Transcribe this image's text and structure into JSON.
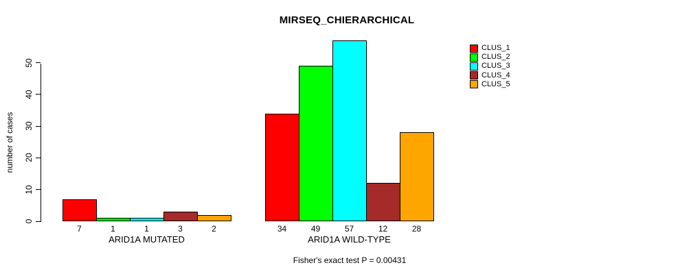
{
  "title": "MIRSEQ_CHIERARCHICAL",
  "ylabel": "number of cases",
  "annotation": "Fisher's exact test P = 0.00431",
  "legend": {
    "items": [
      {
        "label": "CLUS_1",
        "color": "#FF0000"
      },
      {
        "label": "CLUS_2",
        "color": "#00FF00"
      },
      {
        "label": "CLUS_3",
        "color": "#00FFFF"
      },
      {
        "label": "CLUS_4",
        "color": "#A52A2A"
      },
      {
        "label": "CLUS_5",
        "color": "#FFA500"
      }
    ]
  },
  "chart_data": {
    "type": "bar",
    "title": "MIRSEQ_CHIERARCHICAL",
    "xlabel": "",
    "ylabel": "number of cases",
    "categories": [
      "ARID1A MUTATED",
      "ARID1A WILD-TYPE"
    ],
    "series": [
      {
        "name": "CLUS_1",
        "color": "#FF0000",
        "values": [
          7,
          34
        ]
      },
      {
        "name": "CLUS_2",
        "color": "#00FF00",
        "values": [
          1,
          49
        ]
      },
      {
        "name": "CLUS_3",
        "color": "#00FFFF",
        "values": [
          1,
          57
        ]
      },
      {
        "name": "CLUS_4",
        "color": "#A52A2A",
        "values": [
          3,
          12
        ]
      },
      {
        "name": "CLUS_5",
        "color": "#FFA500",
        "values": [
          2,
          28
        ]
      }
    ],
    "bar_value_labels": {
      "ARID1A MUTATED": [
        7,
        1,
        1,
        3,
        2
      ],
      "ARID1A WILD-TYPE": [
        34,
        49,
        57,
        12,
        28
      ]
    },
    "yticks": [
      0,
      10,
      20,
      30,
      40,
      50
    ],
    "ylim": [
      0,
      57.5
    ],
    "grid": false,
    "legend_position": "right",
    "annotation": "Fisher's exact test P = 0.00431"
  }
}
